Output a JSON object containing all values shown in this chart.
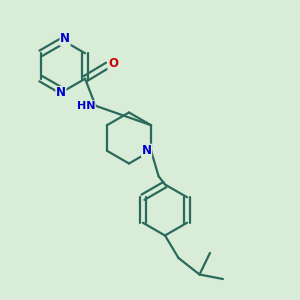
{
  "bg_color": "#d8ecd8",
  "bond_color": "#2a6a5a",
  "N_color": "#0000cc",
  "O_color": "#cc0000",
  "lw": 1.6,
  "fig_size": [
    3.0,
    3.0
  ],
  "dpi": 100,
  "xlim": [
    0,
    10
  ],
  "ylim": [
    0,
    10
  ]
}
